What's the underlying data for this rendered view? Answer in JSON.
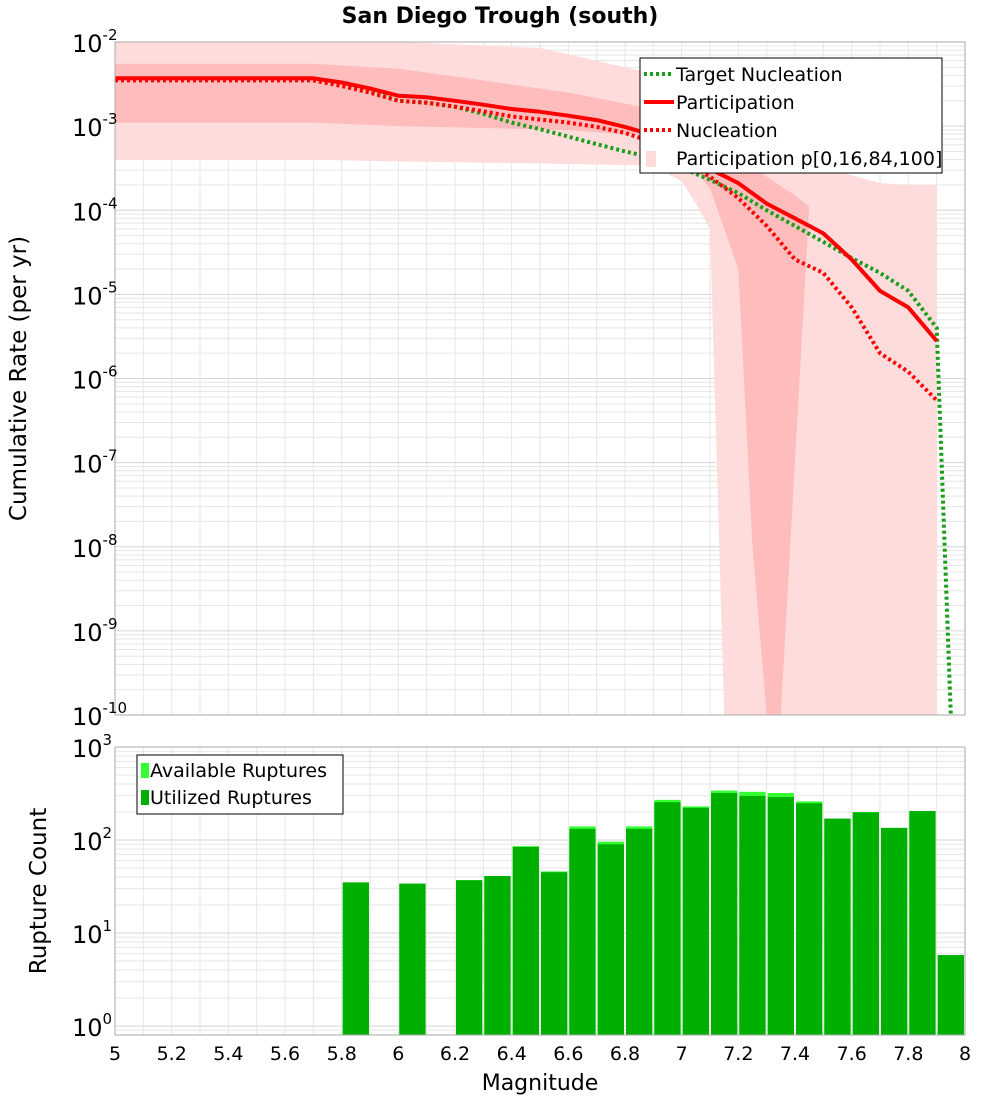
{
  "colors": {
    "target": "#1a9e1a",
    "participation": "#ff0000",
    "band_outer": "#ffdcdc",
    "band_inner": "#ffbcbc",
    "available": "#33ff33",
    "utilized": "#00b000",
    "grid": "#e6e6e6"
  },
  "chart_data": [
    {
      "type": "line",
      "title": "San Diego Trough (south)",
      "xlabel": "",
      "ylabel": "Cumulative Rate (per yr)",
      "xlim": [
        5,
        8
      ],
      "ylim": [
        1e-10,
        0.01
      ],
      "yscale": "log",
      "grid": true,
      "legend_position": "top-right",
      "y_ticks": [
        {
          "base": "10",
          "exp": "-10"
        },
        {
          "base": "10",
          "exp": "-9"
        },
        {
          "base": "10",
          "exp": "-8"
        },
        {
          "base": "10",
          "exp": "-7"
        },
        {
          "base": "10",
          "exp": "-6"
        },
        {
          "base": "10",
          "exp": "-5"
        },
        {
          "base": "10",
          "exp": "-4"
        },
        {
          "base": "10",
          "exp": "-3"
        },
        {
          "base": "10",
          "exp": "-2"
        }
      ],
      "legend": [
        "Target Nucleation",
        "Participation",
        "Nucleation",
        "Participation p[0,16,84,100]"
      ],
      "series": [
        {
          "name": "Target Nucleation",
          "style": "dotted",
          "color": "target",
          "x": [
            5.0,
            5.7,
            5.8,
            5.9,
            6.0,
            6.1,
            6.2,
            6.3,
            6.4,
            6.5,
            6.6,
            6.7,
            6.8,
            6.9,
            7.0,
            7.1,
            7.2,
            7.3,
            7.4,
            7.5,
            7.6,
            7.7,
            7.8,
            7.9,
            7.95
          ],
          "y": [
            0.0036,
            0.0036,
            0.0032,
            0.0026,
            0.002,
            0.0019,
            0.0017,
            0.0014,
            0.0011,
            0.00092,
            0.00075,
            0.00061,
            0.0005,
            0.00042,
            0.00032,
            0.00023,
            0.00016,
            0.0001,
            6.5e-05,
            4.2e-05,
            2.7e-05,
            1.8e-05,
            1.1e-05,
            4e-06,
            1e-10
          ]
        },
        {
          "name": "Participation",
          "style": "solid",
          "color": "participation",
          "x": [
            5.0,
            5.7,
            5.8,
            5.9,
            6.0,
            6.1,
            6.2,
            6.3,
            6.4,
            6.5,
            6.6,
            6.7,
            6.8,
            6.9,
            7.0,
            7.1,
            7.2,
            7.3,
            7.4,
            7.5,
            7.6,
            7.7,
            7.8,
            7.9
          ],
          "y": [
            0.0037,
            0.0037,
            0.0033,
            0.0028,
            0.0023,
            0.0022,
            0.002,
            0.0018,
            0.0016,
            0.00148,
            0.00133,
            0.00118,
            0.00098,
            0.00078,
            0.0005,
            0.00031,
            0.00021,
            0.00012,
            8e-05,
            5.3e-05,
            2.6e-05,
            1.1e-05,
            7e-06,
            2.8e-06
          ]
        },
        {
          "name": "Nucleation",
          "style": "dotted",
          "color": "participation",
          "x": [
            5.0,
            5.7,
            5.8,
            5.9,
            6.0,
            6.1,
            6.2,
            6.3,
            6.4,
            6.5,
            6.6,
            6.7,
            6.8,
            6.9,
            7.0,
            7.1,
            7.2,
            7.3,
            7.4,
            7.5,
            7.6,
            7.7,
            7.8,
            7.9
          ],
          "y": [
            0.0035,
            0.0035,
            0.003,
            0.0025,
            0.002,
            0.0019,
            0.0017,
            0.0015,
            0.0013,
            0.0012,
            0.0011,
            0.00098,
            0.00083,
            0.00064,
            0.0004,
            0.00025,
            0.00014,
            6.5e-05,
            2.6e-05,
            1.8e-05,
            7e-06,
            2e-06,
            1.2e-06,
            5.5e-07
          ]
        }
      ],
      "bands": [
        {
          "name": "p0-100",
          "color": "band_outer",
          "upper": {
            "x": [
              5.0,
              5.7,
              6.0,
              6.5,
              6.9,
              7.0,
              7.1,
              7.15,
              7.2,
              7.3,
              7.4,
              7.5,
              7.6,
              7.7,
              7.8,
              7.9
            ],
            "y": [
              0.01,
              0.01,
              0.01,
              0.0085,
              0.0042,
              0.0025,
              0.0013,
              0.00085,
              0.0006,
              0.00048,
              0.0004,
              0.00033,
              0.00026,
              0.00021,
              0.0002,
              0.0002
            ]
          },
          "lower": {
            "x": [
              5.0,
              5.7,
              6.0,
              6.5,
              6.9,
              7.0,
              7.05,
              7.1,
              7.15,
              7.2,
              7.3,
              7.4,
              7.5,
              7.6,
              7.7,
              7.8,
              7.9
            ],
            "y": [
              0.0004,
              0.0004,
              0.00038,
              0.00036,
              0.00034,
              0.00022,
              0.00012,
              6e-05,
              1e-10,
              1e-10,
              1e-10,
              1e-10,
              1e-10,
              1e-10,
              1e-10,
              1e-10,
              1e-10
            ]
          }
        },
        {
          "name": "p16-84",
          "color": "band_inner",
          "upper": {
            "x": [
              5.0,
              5.7,
              6.0,
              6.3,
              6.6,
              6.9,
              7.0,
              7.1,
              7.2,
              7.3,
              7.4,
              7.45
            ],
            "y": [
              0.0055,
              0.0055,
              0.0048,
              0.0035,
              0.0025,
              0.0016,
              0.0012,
              0.0007,
              0.00045,
              0.00025,
              0.00015,
              0.00011
            ]
          },
          "lower": {
            "x": [
              5.0,
              5.7,
              6.0,
              6.3,
              6.6,
              6.9,
              7.0,
              7.1,
              7.2,
              7.25,
              7.3,
              7.35
            ],
            "y": [
              0.0011,
              0.0011,
              0.001,
              0.00095,
              0.0009,
              0.00075,
              0.0005,
              0.00018,
              2e-05,
              1e-08,
              1e-10,
              1e-10
            ]
          }
        }
      ]
    },
    {
      "type": "bar",
      "xlabel": "Magnitude",
      "ylabel": "Rupture Count",
      "xlim": [
        5,
        8
      ],
      "ylim": [
        0.8,
        1000
      ],
      "yscale": "log",
      "grid": true,
      "legend_position": "top-left",
      "x_tick_labels": [
        "5",
        "5.2",
        "5.4",
        "5.6",
        "5.8",
        "6",
        "6.2",
        "6.4",
        "6.6",
        "6.8",
        "7",
        "7.2",
        "7.4",
        "7.6",
        "7.8",
        "8"
      ],
      "y_ticks": [
        {
          "base": "10",
          "exp": "0"
        },
        {
          "base": "10",
          "exp": "1"
        },
        {
          "base": "10",
          "exp": "2"
        },
        {
          "base": "10",
          "exp": "3"
        }
      ],
      "legend": [
        "Available Ruptures",
        "Utilized Ruptures"
      ],
      "x": [
        5.85,
        6.05,
        6.25,
        6.35,
        6.45,
        6.55,
        6.65,
        6.75,
        6.85,
        6.95,
        7.05,
        7.15,
        7.25,
        7.35,
        7.45,
        7.55,
        7.65,
        7.75,
        7.85,
        7.95
      ],
      "series": [
        {
          "name": "Available Ruptures",
          "color": "available",
          "values": [
            35,
            34,
            37,
            41,
            86,
            46,
            140,
            96,
            140,
            270,
            230,
            340,
            330,
            320,
            260,
            170,
            200,
            135,
            205,
            5.8
          ]
        },
        {
          "name": "Utilized Ruptures",
          "color": "utilized",
          "values": [
            35,
            34,
            37,
            41,
            84,
            45,
            132,
            90,
            132,
            255,
            222,
            320,
            298,
            290,
            248,
            170,
            198,
            135,
            205,
            5.8
          ]
        }
      ]
    }
  ]
}
